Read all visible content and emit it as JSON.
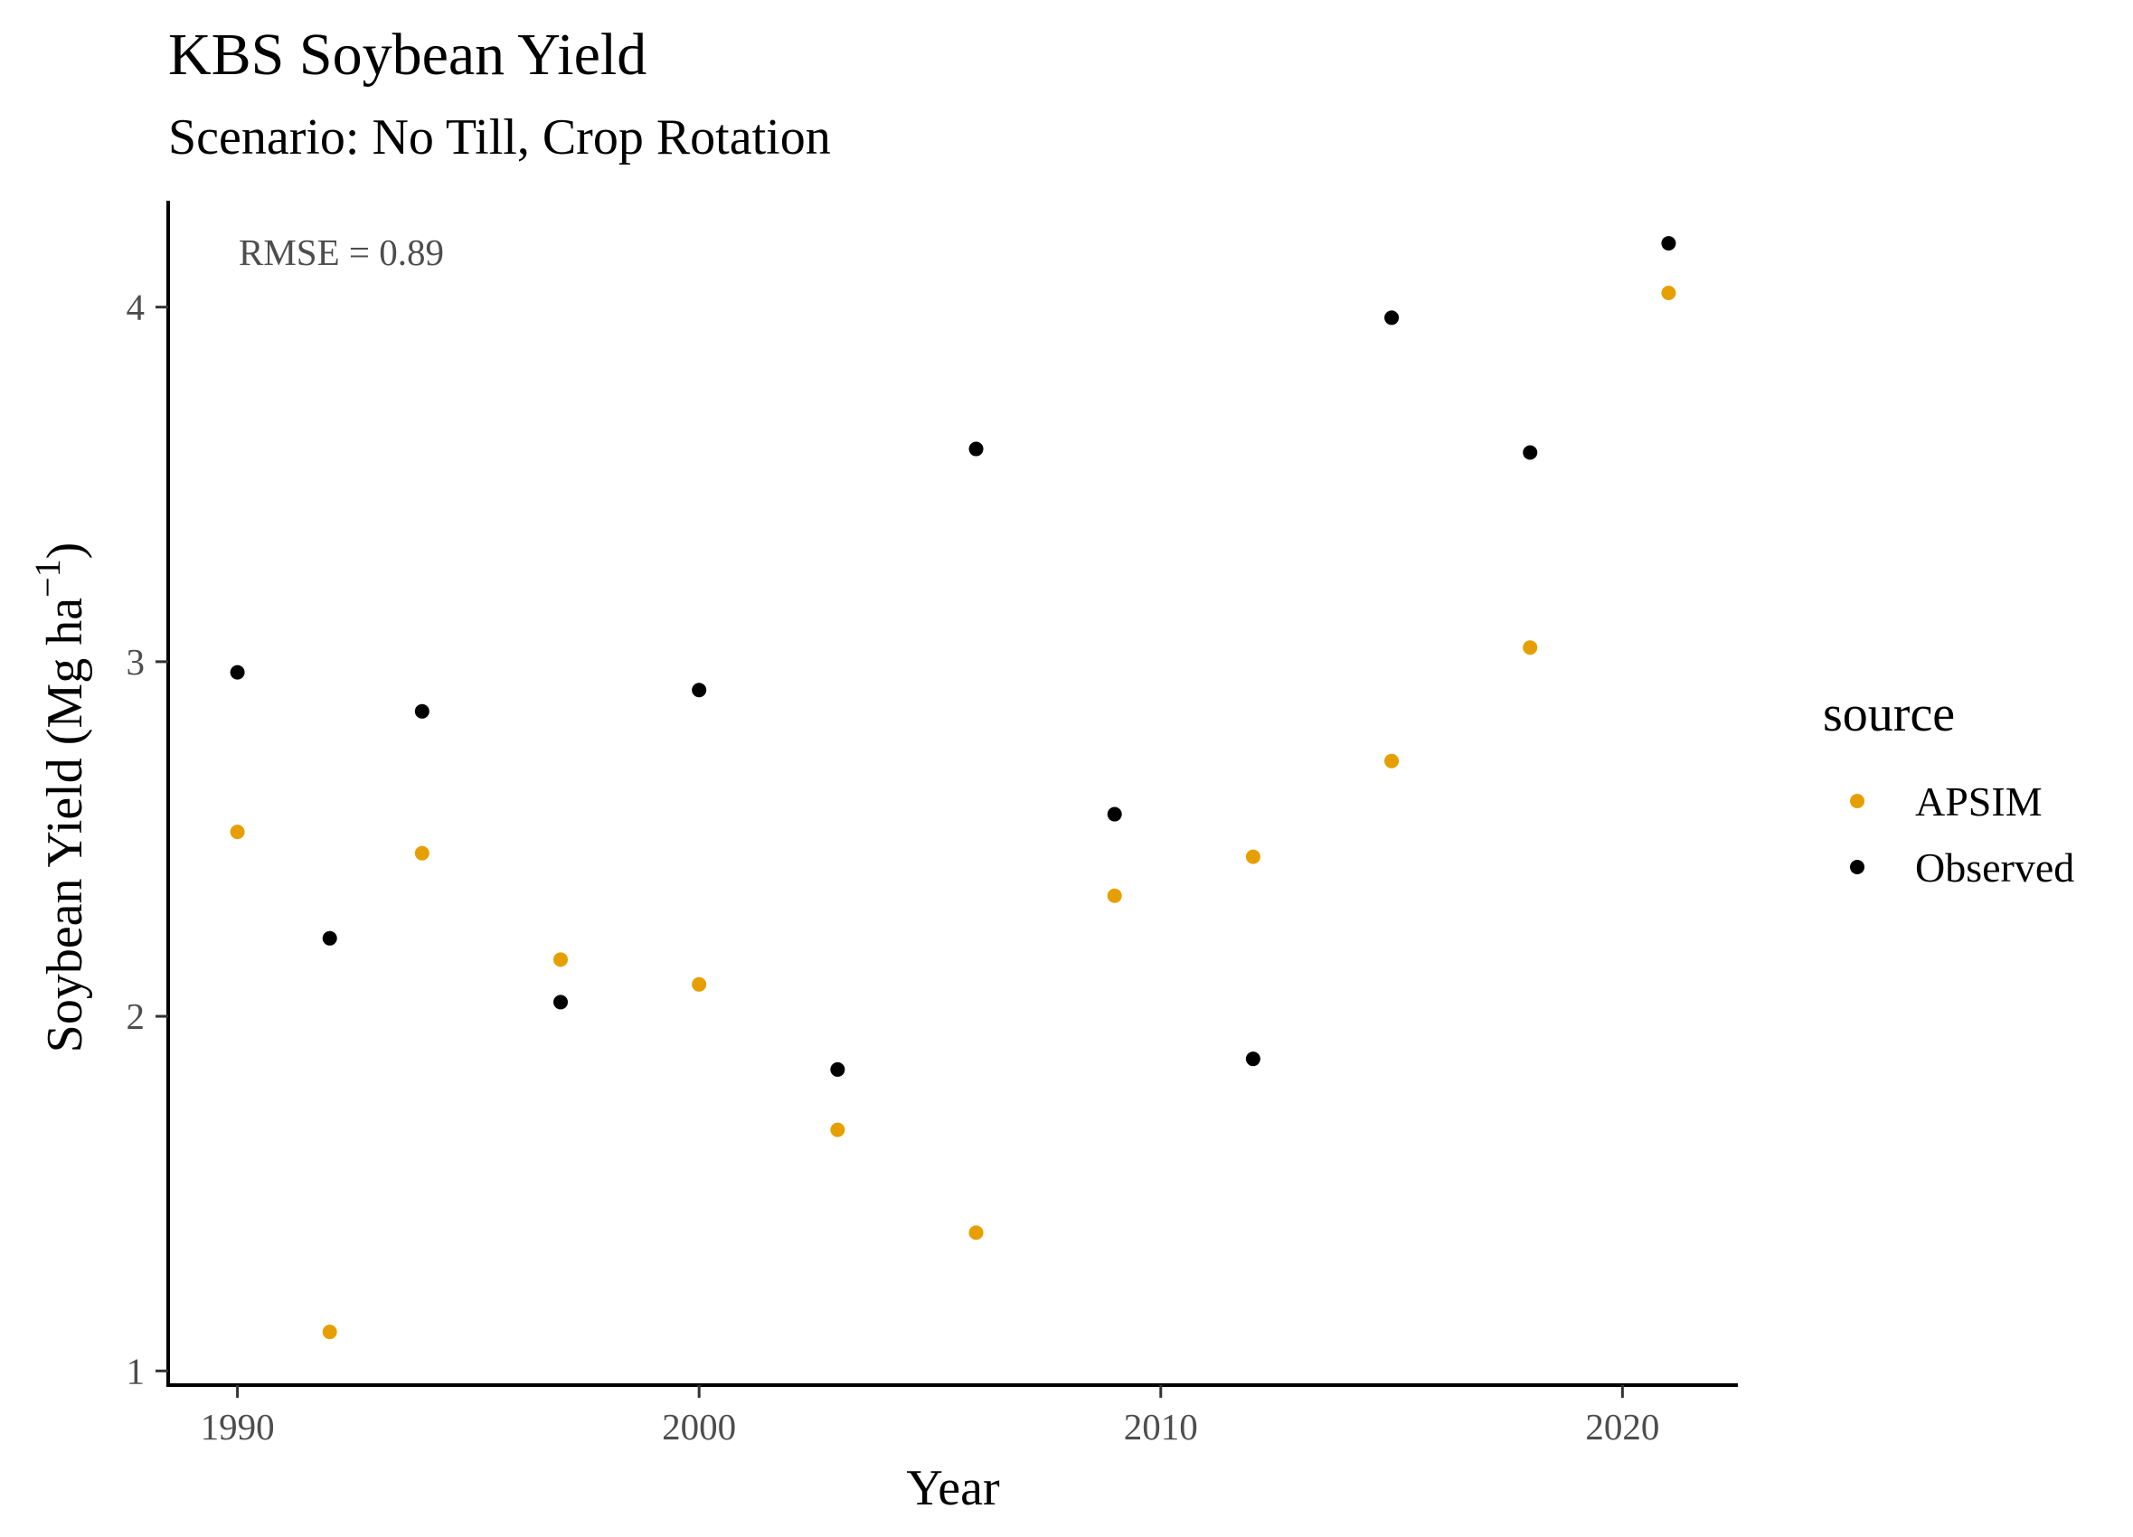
{
  "chart_data": {
    "type": "scatter",
    "title": "KBS Soybean Yield",
    "subtitle": "Scenario: No Till, Crop Rotation",
    "xlabel": "Year",
    "ylabel_main": "Soybean Yield (Mg ha",
    "ylabel_sup": "−1",
    "ylabel_close": ")",
    "xlim": [
      1988.5,
      2022.5
    ],
    "ylim": [
      0.96,
      4.3
    ],
    "xticks": [
      1990,
      2000,
      2010,
      2020
    ],
    "yticks": [
      1,
      2,
      3,
      4
    ],
    "grid": false,
    "annotation": "RMSE = 0.89",
    "legend": {
      "title": "source",
      "position": "right"
    },
    "series": [
      {
        "name": "APSIM",
        "color": "#E69F00",
        "x": [
          1990,
          1992,
          1994,
          1997,
          2000,
          2003,
          2006,
          2009,
          2012,
          2015,
          2018,
          2021
        ],
        "y": [
          2.52,
          1.11,
          2.46,
          2.16,
          2.09,
          1.68,
          1.39,
          2.34,
          2.45,
          2.72,
          3.04,
          4.04
        ]
      },
      {
        "name": "Observed",
        "color": "#000000",
        "x": [
          1990,
          1992,
          1994,
          1997,
          2000,
          2003,
          2006,
          2009,
          2012,
          2015,
          2018,
          2021
        ],
        "y": [
          2.97,
          2.22,
          2.86,
          2.04,
          2.92,
          1.85,
          3.6,
          2.57,
          1.88,
          3.97,
          3.59,
          4.18
        ]
      }
    ]
  }
}
